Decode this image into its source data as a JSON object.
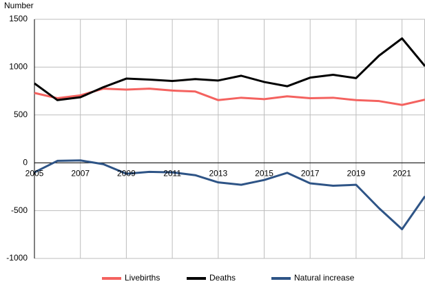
{
  "chart_data": {
    "type": "line",
    "y_axis_label": "Number",
    "x": [
      2005,
      2006,
      2007,
      2008,
      2009,
      2010,
      2011,
      2012,
      2013,
      2014,
      2015,
      2016,
      2017,
      2018,
      2019,
      2020,
      2021,
      2022
    ],
    "series": [
      {
        "name": "Livebirths",
        "color": "#f4625f",
        "values": [
          730,
          675,
          705,
          775,
          765,
          775,
          755,
          745,
          655,
          680,
          665,
          695,
          675,
          680,
          655,
          645,
          605,
          660
        ]
      },
      {
        "name": "Deaths",
        "color": "#000000",
        "values": [
          830,
          655,
          685,
          790,
          880,
          870,
          855,
          875,
          860,
          910,
          845,
          800,
          890,
          920,
          885,
          1120,
          1300,
          1010
        ]
      },
      {
        "name": "Natural increase",
        "color": "#2e5486",
        "values": [
          -100,
          20,
          25,
          -15,
          -115,
          -95,
          -100,
          -130,
          -205,
          -230,
          -180,
          -105,
          -215,
          -240,
          -230,
          -475,
          -695,
          -350
        ]
      }
    ],
    "xlim": [
      2005,
      2022
    ],
    "xticks": [
      2005,
      2007,
      2009,
      2011,
      2013,
      2015,
      2017,
      2019,
      2021
    ],
    "ylim": [
      -1000,
      1500
    ],
    "yticks": [
      -1000,
      -500,
      0,
      500,
      1000,
      1500
    ],
    "grid": true,
    "legend": "bottom"
  }
}
